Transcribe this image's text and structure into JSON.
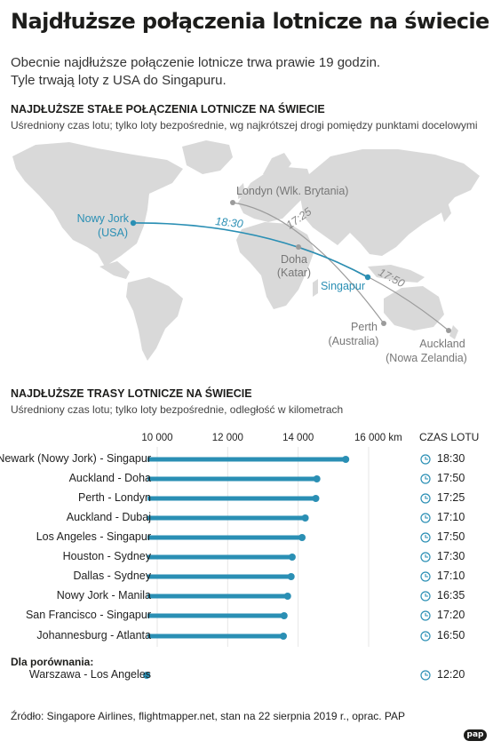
{
  "header": {
    "title": "Najdłuższe połączenia lotnicze na świecie",
    "subtitle_line1": "Obecnie najdłuższe połączenie lotnicze trwa prawie 19 godzin.",
    "subtitle_line2": "Tyle trwają loty z USA do Singapuru."
  },
  "map_section": {
    "title": "NAJDŁUŻSZE STAŁE POŁĄCZENIA LOTNICZE NA ŚWIECIE",
    "subtitle": "Uśredniony czas lotu; tylko loty bezpośrednie, wg najkrótszej drogi pomiędzy punktami docelowymi",
    "cities": {
      "london": "Londyn (Wlk. Brytania)",
      "ny_line1": "Nowy Jork",
      "ny_line2": "(USA)",
      "doha_line1": "Doha",
      "doha_line2": "(Katar)",
      "singapore": "Singapur",
      "perth_line1": "Perth",
      "perth_line2": "(Australia)",
      "auckland_line1": "Auckland",
      "auckland_line2": "(Nowa Zelandia)"
    },
    "route_times": {
      "ny_sin": "18:30",
      "per_lon": "17:25",
      "akl_doh": "17:50"
    }
  },
  "chart_section": {
    "title": "NAJDŁUŻSZE TRASY LOTNICZE NA ŚWIECIE",
    "subtitle": "Uśredniony czas lotu; tylko loty bezpośrednie, odległość w kilometrach",
    "time_header": "CZAS LOTU",
    "comparison_label": "Dla porównania:"
  },
  "chart_data": {
    "type": "bar",
    "orientation": "horizontal",
    "xlim": [
      10000,
      16000
    ],
    "ticks": [
      {
        "value": 10000,
        "label": "10 000"
      },
      {
        "value": 12000,
        "label": "12 000"
      },
      {
        "value": 14000,
        "label": "14 000"
      },
      {
        "value": 16000,
        "label": "16 000 km"
      }
    ],
    "categories": [
      "Newark (Nowy Jork) - Singapur",
      "Auckland - Doha",
      "Perth - Londyn",
      "Auckland - Dubaj",
      "Los Angeles - Singapur",
      "Houston - Sydney",
      "Dallas - Sydney",
      "Nowy Jork - Manila",
      "San Francisco - Singapur",
      "Johannesburg - Atlanta",
      "Warszawa - Los Angeles"
    ],
    "values": [
      15350,
      14530,
      14500,
      14200,
      14110,
      13830,
      13800,
      13700,
      13600,
      13580,
      9700
    ],
    "flight_times": [
      "18:30",
      "17:50",
      "17:25",
      "17:10",
      "17:50",
      "17:30",
      "17:10",
      "16:35",
      "17:20",
      "16:50",
      "12:20"
    ],
    "comparison_index": 10,
    "colors": {
      "bar": "#2a8fb4",
      "clock": "#2a8fb4",
      "route": "#2a8fb4",
      "grey_route": "#9b9b9b"
    }
  },
  "footer": {
    "source": "Źródło: Singapore Airlines, flightmapper.net, stan na 22 sierpnia 2019 r., oprac. PAP",
    "logo": "pap"
  }
}
